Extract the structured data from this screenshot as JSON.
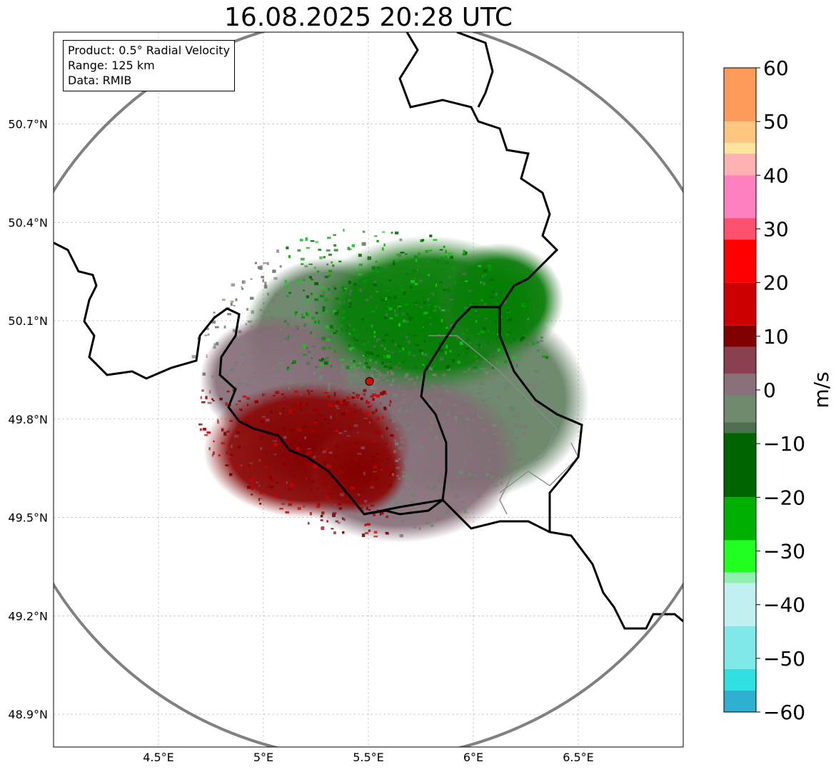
{
  "title": "16.08.2025 20:28 UTC",
  "info": {
    "product": "Product: 0.5° Radial Velocity",
    "range": "Range: 125 km",
    "data": "Data: RMIB"
  },
  "map": {
    "lon_range": [
      4.0,
      7.0
    ],
    "lat_range": [
      48.8,
      50.98
    ],
    "x_ticks": [
      {
        "value": 4.5,
        "label": "4.5°E"
      },
      {
        "value": 5.0,
        "label": "5°E"
      },
      {
        "value": 5.5,
        "label": "5.5°E"
      },
      {
        "value": 6.0,
        "label": "6°E"
      },
      {
        "value": 6.5,
        "label": "6.5°E"
      }
    ],
    "y_ticks": [
      {
        "value": 50.7,
        "label": "50.7°N"
      },
      {
        "value": 50.4,
        "label": "50.4°N"
      },
      {
        "value": 50.1,
        "label": "50.1°N"
      },
      {
        "value": 49.8,
        "label": "49.8°N"
      },
      {
        "value": 49.5,
        "label": "49.5°N"
      },
      {
        "value": 49.2,
        "label": "49.2°N"
      },
      {
        "value": 48.9,
        "label": "48.9°N"
      }
    ],
    "radar_site": {
      "lon": 5.505,
      "lat": 49.915
    },
    "range_ring_km": 125,
    "gridlines": "on",
    "borders": "country and province borders (black / grey)"
  },
  "colorbar": {
    "unit": "m/s",
    "min": -60,
    "max": 60,
    "ticks": [
      60,
      50,
      40,
      30,
      20,
      10,
      0,
      -10,
      -20,
      -30,
      -40,
      -50,
      -60
    ],
    "tick_labels": [
      "60",
      "50",
      "40",
      "30",
      "20",
      "10",
      "0",
      "−10",
      "−20",
      "−30",
      "−40",
      "−50",
      "−60"
    ],
    "stops": [
      {
        "v": 60,
        "color": "#ff9b5a"
      },
      {
        "v": 50,
        "color": "#ffc680"
      },
      {
        "v": 46,
        "color": "#ffe39e"
      },
      {
        "v": 44,
        "color": "#ffb0b0"
      },
      {
        "v": 40,
        "color": "#ff80c0"
      },
      {
        "v": 32,
        "color": "#ff5070"
      },
      {
        "v": 28,
        "color": "#ff0000"
      },
      {
        "v": 20,
        "color": "#cc0000"
      },
      {
        "v": 12,
        "color": "#800000"
      },
      {
        "v": 8,
        "color": "#8a4050"
      },
      {
        "v": 3,
        "color": "#8a7078"
      },
      {
        "v": -1,
        "color": "#708a70"
      },
      {
        "v": -6,
        "color": "#4f7050"
      },
      {
        "v": -8,
        "color": "#006400"
      },
      {
        "v": -20,
        "color": "#00b000"
      },
      {
        "v": -28,
        "color": "#20ff20"
      },
      {
        "v": -34,
        "color": "#90f0b0"
      },
      {
        "v": -36,
        "color": "#c0f0f0"
      },
      {
        "v": -44,
        "color": "#80e8e8"
      },
      {
        "v": -52,
        "color": "#30e0e0"
      },
      {
        "v": -56,
        "color": "#30b0d0"
      },
      {
        "v": -60,
        "color": "#1f80c0"
      }
    ]
  },
  "colors": {
    "inbound_green": "#008a00",
    "outbound_red": "#8b0000",
    "near_zero": "#7a7a7a",
    "radar_marker": "#e00000"
  }
}
